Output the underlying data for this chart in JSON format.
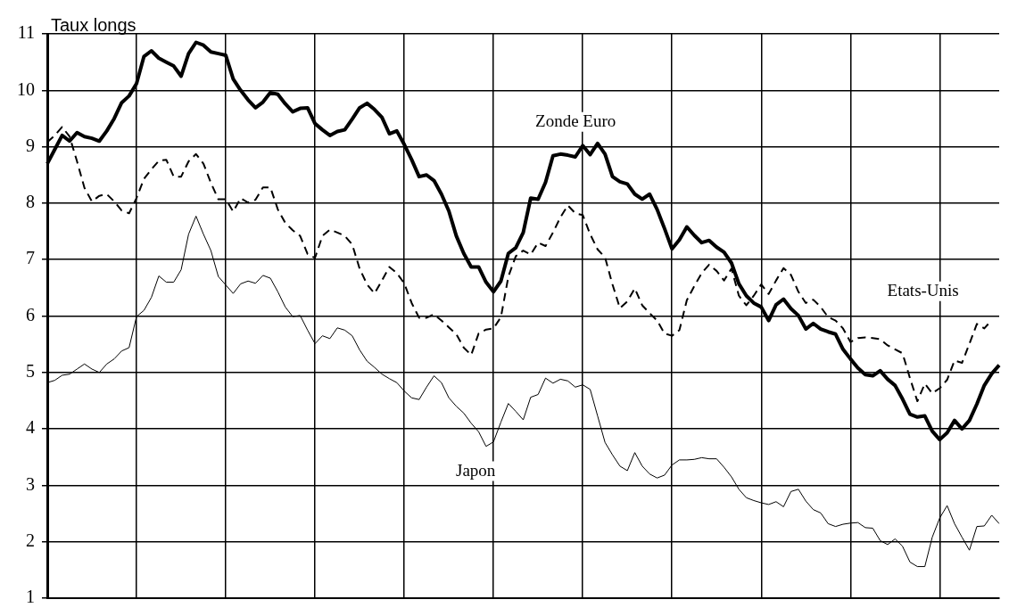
{
  "chart_data": {
    "type": "line",
    "ylabel": "Taux longs",
    "categories": [
      null,
      null,
      null,
      null,
      null,
      null,
      null,
      null,
      null,
      null,
      null,
      null,
      null,
      null,
      null,
      null,
      null,
      null,
      null,
      null,
      null,
      null,
      null,
      null,
      null,
      null,
      null,
      null,
      null,
      null,
      null,
      null,
      null,
      null,
      null,
      null,
      null,
      null,
      null,
      null,
      null,
      null,
      null,
      null,
      null,
      null,
      null,
      null,
      null,
      null,
      null,
      null,
      null,
      null,
      null,
      null,
      null,
      null,
      null,
      null,
      null,
      null,
      null,
      null,
      null,
      null,
      null,
      null,
      null,
      null,
      null,
      null,
      null,
      null,
      null,
      null,
      null,
      null,
      null,
      null,
      null,
      null,
      null,
      null,
      null,
      null,
      null,
      null,
      null,
      null,
      null,
      null,
      null,
      null,
      null,
      null,
      null,
      null,
      null,
      null,
      null,
      null,
      null,
      null,
      null,
      null,
      null,
      null,
      null,
      null,
      null,
      null,
      null,
      null,
      null,
      null,
      null,
      null,
      null,
      null,
      null,
      null,
      null,
      null,
      null,
      null,
      null,
      null,
      null
    ],
    "series": [
      {
        "name": "Zonde Euro",
        "color": "#000000",
        "line_style": "solid",
        "values": [
          8.7,
          8.95,
          9.2,
          9.1,
          9.25,
          9.18,
          9.15,
          9.1,
          9.28,
          9.5,
          9.78,
          9.9,
          10.12,
          10.6,
          10.7,
          10.57,
          10.5,
          10.43,
          10.25,
          10.65,
          10.85,
          10.8,
          10.68,
          10.65,
          10.62,
          10.2,
          10.0,
          9.83,
          9.69,
          9.79,
          9.96,
          9.93,
          9.76,
          9.62,
          9.68,
          9.69,
          9.41,
          9.3,
          9.2,
          9.27,
          9.3,
          9.49,
          9.69,
          9.77,
          9.66,
          9.52,
          9.23,
          9.28,
          9.04,
          8.77,
          8.47,
          8.5,
          8.4,
          8.16,
          7.86,
          7.42,
          7.11,
          6.87,
          6.87,
          6.6,
          6.43,
          6.62,
          7.11,
          7.21,
          7.48,
          8.09,
          8.07,
          8.37,
          8.84,
          8.87,
          8.85,
          8.82,
          9.02,
          8.86,
          9.06,
          8.87,
          8.47,
          8.38,
          8.34,
          8.16,
          8.07,
          8.16,
          7.89,
          7.55,
          7.19,
          7.35,
          7.58,
          7.43,
          7.3,
          7.34,
          7.22,
          7.13,
          6.94,
          6.57,
          6.36,
          6.23,
          6.16,
          5.92,
          6.2,
          6.3,
          6.13,
          6.01,
          5.77,
          5.87,
          5.77,
          5.72,
          5.68,
          5.41,
          5.24,
          5.08,
          4.96,
          4.94,
          5.03,
          4.88,
          4.77,
          4.53,
          4.26,
          4.21,
          4.23,
          3.96,
          3.81,
          3.93,
          4.15,
          4.0,
          4.15,
          4.44,
          4.77,
          4.98,
          5.13
        ]
      },
      {
        "name": "Etats-Unis",
        "color": "#000000",
        "line_style": "dashed",
        "values": [
          9.08,
          9.2,
          9.35,
          9.18,
          8.74,
          8.27,
          8.03,
          8.13,
          8.16,
          8.03,
          7.87,
          7.82,
          8.09,
          8.43,
          8.6,
          8.75,
          8.77,
          8.47,
          8.47,
          8.74,
          8.87,
          8.7,
          8.36,
          8.07,
          8.07,
          7.85,
          8.09,
          8.01,
          8.06,
          8.28,
          8.28,
          7.89,
          7.65,
          7.52,
          7.42,
          7.1,
          7.03,
          7.42,
          7.53,
          7.48,
          7.42,
          7.27,
          6.84,
          6.56,
          6.4,
          6.63,
          6.87,
          6.76,
          6.58,
          6.23,
          5.97,
          5.97,
          6.03,
          5.92,
          5.8,
          5.68,
          5.44,
          5.31,
          5.69,
          5.76,
          5.78,
          5.98,
          6.7,
          7.06,
          7.16,
          7.09,
          7.3,
          7.24,
          7.48,
          7.75,
          7.96,
          7.82,
          7.79,
          7.45,
          7.18,
          7.04,
          6.56,
          6.14,
          6.26,
          6.49,
          6.19,
          6.05,
          5.92,
          5.69,
          5.65,
          5.75,
          6.28,
          6.53,
          6.76,
          6.91,
          6.8,
          6.63,
          6.84,
          6.36,
          6.19,
          6.36,
          6.56,
          6.39,
          6.63,
          6.85,
          6.73,
          6.43,
          6.23,
          6.29,
          6.16,
          5.98,
          5.92,
          5.78,
          5.54,
          5.61,
          5.62,
          5.61,
          5.59,
          5.48,
          5.41,
          5.34,
          4.9,
          4.49,
          4.8,
          4.63,
          4.72,
          4.87,
          5.21,
          5.17,
          5.51,
          5.86,
          5.78,
          5.93,
          null
        ]
      },
      {
        "name": "Japon",
        "color": "#000000",
        "line_style": "solid",
        "values": [
          4.82,
          4.86,
          4.95,
          4.97,
          5.06,
          5.15,
          5.06,
          5.0,
          5.15,
          5.24,
          5.38,
          5.44,
          5.99,
          6.1,
          6.33,
          6.71,
          6.6,
          6.6,
          6.82,
          7.45,
          7.77,
          7.45,
          7.16,
          6.7,
          6.55,
          6.4,
          6.57,
          6.62,
          6.58,
          6.72,
          6.67,
          6.43,
          6.16,
          5.99,
          6.01,
          5.75,
          5.51,
          5.65,
          5.6,
          5.79,
          5.75,
          5.65,
          5.4,
          5.2,
          5.09,
          4.97,
          4.89,
          4.82,
          4.67,
          4.55,
          4.52,
          4.74,
          4.94,
          4.82,
          4.55,
          4.4,
          4.28,
          4.1,
          3.95,
          3.69,
          3.77,
          4.12,
          4.45,
          4.31,
          4.16,
          4.56,
          4.61,
          4.9,
          4.81,
          4.88,
          4.85,
          4.74,
          4.78,
          4.7,
          4.23,
          3.76,
          3.54,
          3.34,
          3.26,
          3.58,
          3.34,
          3.2,
          3.13,
          3.18,
          3.36,
          3.45,
          3.45,
          3.46,
          3.49,
          3.47,
          3.47,
          3.32,
          3.15,
          2.93,
          2.78,
          2.73,
          2.69,
          2.66,
          2.71,
          2.62,
          2.89,
          2.93,
          2.72,
          2.57,
          2.51,
          2.32,
          2.27,
          2.31,
          2.33,
          2.34,
          2.25,
          2.24,
          2.02,
          1.95,
          2.05,
          1.92,
          1.64,
          1.56,
          1.56,
          2.08,
          2.42,
          2.64,
          2.32,
          2.08,
          1.85,
          2.27,
          2.28,
          2.47,
          2.32
        ]
      }
    ],
    "ylim": [
      1,
      11
    ],
    "yticks": [
      1,
      2,
      3,
      4,
      5,
      6,
      7,
      8,
      9,
      10,
      11
    ],
    "tick_labels": "y",
    "grid": true,
    "legend": false,
    "marker": "none"
  }
}
